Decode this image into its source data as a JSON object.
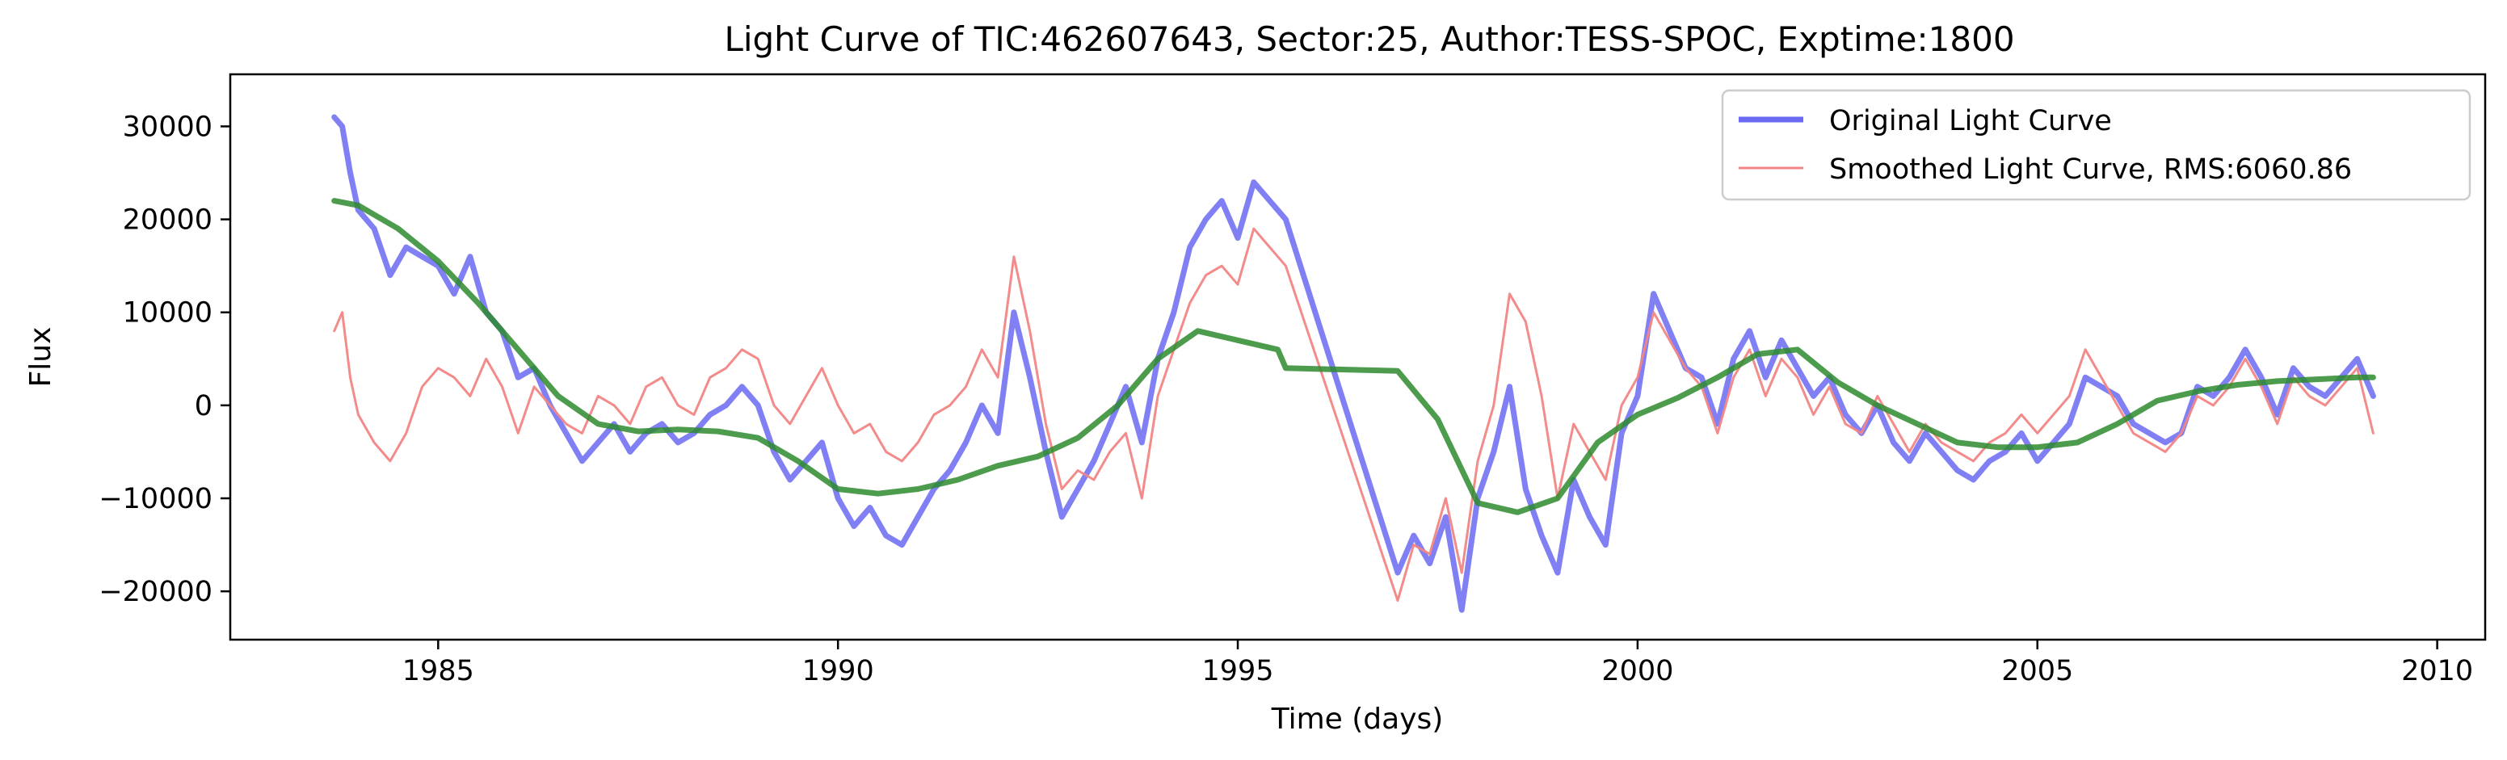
{
  "chart_data": {
    "type": "line",
    "title": "Light Curve of TIC:462607643, Sector:25, Author:TESS-SPOC, Exptime:1800",
    "xlabel": "Time (days)",
    "ylabel": "Flux",
    "xlim": [
      1982.4,
      2010.6
    ],
    "ylim": [
      -25200,
      35600
    ],
    "xticks": [
      1985,
      1990,
      1995,
      2000,
      2005,
      2010
    ],
    "xtick_labels": [
      "1985",
      "1990",
      "1995",
      "2000",
      "2005",
      "2010"
    ],
    "yticks": [
      -20000,
      -10000,
      0,
      10000,
      20000,
      30000
    ],
    "ytick_labels": [
      "−20000",
      "−10000",
      "0",
      "10000",
      "20000",
      "30000"
    ],
    "grid": false,
    "legend": {
      "placement": "upper-right",
      "entries": [
        "Original Light Curve",
        "Smoothed Light Curve, RMS:6060.86"
      ]
    },
    "series": [
      {
        "name": "Original Light Curve",
        "color": "#6a6af2",
        "style": "thick",
        "x": [
          1983.7,
          1983.8,
          1983.9,
          1984.0,
          1984.2,
          1984.4,
          1984.6,
          1984.8,
          1985.0,
          1985.2,
          1985.4,
          1985.6,
          1985.8,
          1986.0,
          1986.2,
          1986.4,
          1986.6,
          1986.8,
          1987.0,
          1987.2,
          1987.4,
          1987.6,
          1987.8,
          1988.0,
          1988.2,
          1988.4,
          1988.6,
          1988.8,
          1989.0,
          1989.2,
          1989.4,
          1989.6,
          1989.8,
          1990.0,
          1990.2,
          1990.4,
          1990.6,
          1990.8,
          1991.0,
          1991.2,
          1991.4,
          1991.6,
          1991.8,
          1992.0,
          1992.2,
          1992.4,
          1992.6,
          1992.8,
          1993.0,
          1993.2,
          1993.4,
          1993.6,
          1993.8,
          1994.0,
          1994.2,
          1994.4,
          1994.6,
          1994.8,
          1995.0,
          1995.2,
          1995.4,
          1995.6,
          1997.0,
          1997.2,
          1997.4,
          1997.6,
          1997.8,
          1998.0,
          1998.2,
          1998.4,
          1998.6,
          1998.8,
          1999.0,
          1999.2,
          1999.4,
          1999.6,
          1999.8,
          2000.0,
          2000.2,
          2000.4,
          2000.6,
          2000.8,
          2001.0,
          2001.2,
          2001.4,
          2001.6,
          2001.8,
          2002.0,
          2002.2,
          2002.4,
          2002.6,
          2002.8,
          2003.0,
          2003.2,
          2003.4,
          2003.6,
          2003.8,
          2004.0,
          2004.2,
          2004.4,
          2004.6,
          2004.8,
          2005.0,
          2005.2,
          2005.4,
          2005.6,
          2005.8,
          2006.0,
          2006.2,
          2006.4,
          2006.6,
          2006.8,
          2007.0,
          2007.2,
          2007.4,
          2007.6,
          2007.8,
          2008.0,
          2008.2,
          2008.4,
          2008.6,
          2008.8,
          2009.0,
          2009.2
        ],
        "y": [
          31000,
          30000,
          25000,
          21000,
          19000,
          14000,
          17000,
          16000,
          15000,
          12000,
          16000,
          10000,
          8000,
          3000,
          4000,
          0,
          -3000,
          -6000,
          -4000,
          -2000,
          -5000,
          -3000,
          -2000,
          -4000,
          -3000,
          -1000,
          0,
          2000,
          0,
          -5000,
          -8000,
          -6000,
          -4000,
          -10000,
          -13000,
          -11000,
          -14000,
          -15000,
          -12000,
          -9000,
          -7000,
          -4000,
          0,
          -3000,
          10000,
          3000,
          -5000,
          -12000,
          -9000,
          -6000,
          -2000,
          2000,
          -4000,
          5000,
          10000,
          17000,
          20000,
          22000,
          18000,
          24000,
          22000,
          20000,
          -18000,
          -14000,
          -17000,
          -12000,
          -22000,
          -10000,
          -5000,
          2000,
          -9000,
          -14000,
          -18000,
          -8000,
          -12000,
          -15000,
          -3000,
          1000,
          12000,
          8000,
          4000,
          3000,
          -2000,
          5000,
          8000,
          3000,
          7000,
          4000,
          1000,
          3000,
          -1000,
          -3000,
          0,
          -4000,
          -6000,
          -3000,
          -5000,
          -7000,
          -8000,
          -6000,
          -5000,
          -3000,
          -6000,
          -4000,
          -2000,
          3000,
          2000,
          1000,
          -2000,
          -3000,
          -4000,
          -3000,
          2000,
          1000,
          3000,
          6000,
          3000,
          -1000,
          4000,
          2000,
          1000,
          3000,
          5000,
          1000
        ],
        "line_width": 7
      },
      {
        "name": "Smoothed Light Curve, RMS:6060.86",
        "color": "#f28585",
        "style": "thin",
        "x": [
          1983.7,
          1983.8,
          1983.9,
          1984.0,
          1984.2,
          1984.4,
          1984.6,
          1984.8,
          1985.0,
          1985.2,
          1985.4,
          1985.6,
          1985.8,
          1986.0,
          1986.2,
          1986.4,
          1986.6,
          1986.8,
          1987.0,
          1987.2,
          1987.4,
          1987.6,
          1987.8,
          1988.0,
          1988.2,
          1988.4,
          1988.6,
          1988.8,
          1989.0,
          1989.2,
          1989.4,
          1989.6,
          1989.8,
          1990.0,
          1990.2,
          1990.4,
          1990.6,
          1990.8,
          1991.0,
          1991.2,
          1991.4,
          1991.6,
          1991.8,
          1992.0,
          1992.2,
          1992.4,
          1992.6,
          1992.8,
          1993.0,
          1993.2,
          1993.4,
          1993.6,
          1993.8,
          1994.0,
          1994.2,
          1994.4,
          1994.6,
          1994.8,
          1995.0,
          1995.2,
          1995.4,
          1995.6,
          1997.0,
          1997.2,
          1997.4,
          1997.6,
          1997.8,
          1998.0,
          1998.2,
          1998.4,
          1998.6,
          1998.8,
          1999.0,
          1999.2,
          1999.4,
          1999.6,
          1999.8,
          2000.0,
          2000.2,
          2000.4,
          2000.6,
          2000.8,
          2001.0,
          2001.2,
          2001.4,
          2001.6,
          2001.8,
          2002.0,
          2002.2,
          2002.4,
          2002.6,
          2002.8,
          2003.0,
          2003.2,
          2003.4,
          2003.6,
          2003.8,
          2004.0,
          2004.2,
          2004.4,
          2004.6,
          2004.8,
          2005.0,
          2005.2,
          2005.4,
          2005.6,
          2005.8,
          2006.0,
          2006.2,
          2006.4,
          2006.6,
          2006.8,
          2007.0,
          2007.2,
          2007.4,
          2007.6,
          2007.8,
          2008.0,
          2008.2,
          2008.4,
          2008.6,
          2008.8,
          2009.0,
          2009.2
        ],
        "y": [
          8000,
          10000,
          3000,
          -1000,
          -4000,
          -6000,
          -3000,
          2000,
          4000,
          3000,
          1000,
          5000,
          2000,
          -3000,
          2000,
          0,
          -2000,
          -3000,
          1000,
          0,
          -2000,
          2000,
          3000,
          0,
          -1000,
          3000,
          4000,
          6000,
          5000,
          0,
          -2000,
          1000,
          4000,
          0,
          -3000,
          -2000,
          -5000,
          -6000,
          -4000,
          -1000,
          0,
          2000,
          6000,
          3000,
          16000,
          8000,
          -2000,
          -9000,
          -7000,
          -8000,
          -5000,
          -3000,
          -10000,
          1000,
          6000,
          11000,
          14000,
          15000,
          13000,
          19000,
          17000,
          15000,
          -21000,
          -15000,
          -16000,
          -10000,
          -18000,
          -6000,
          0,
          12000,
          9000,
          1000,
          -10000,
          -2000,
          -5000,
          -8000,
          0,
          3000,
          10000,
          7000,
          4000,
          2000,
          -3000,
          3000,
          6000,
          1000,
          5000,
          3000,
          -1000,
          2000,
          -2000,
          -3000,
          1000,
          -2000,
          -5000,
          -2000,
          -4000,
          -5000,
          -6000,
          -4000,
          -3000,
          -1000,
          -3000,
          -1000,
          1000,
          6000,
          3000,
          0,
          -3000,
          -4000,
          -5000,
          -3000,
          1000,
          0,
          2000,
          5000,
          2000,
          -2000,
          3000,
          1000,
          0,
          2000,
          4000,
          -3000
        ],
        "line_width": 3
      },
      {
        "name": "",
        "color": "#2e8b2e",
        "style": "trend",
        "x": [
          1983.7,
          1984.0,
          1984.5,
          1985.0,
          1985.5,
          1986.0,
          1986.5,
          1987.0,
          1987.5,
          1988.0,
          1988.5,
          1989.0,
          1989.5,
          1990.0,
          1990.5,
          1991.0,
          1991.5,
          1992.0,
          1992.5,
          1993.0,
          1993.5,
          1994.0,
          1994.5,
          1995.0,
          1995.5,
          1995.6,
          1997.0,
          1997.5,
          1998.0,
          1998.5,
          1999.0,
          1999.5,
          2000.0,
          2000.5,
          2001.0,
          2001.5,
          2002.0,
          2002.5,
          2003.0,
          2003.5,
          2004.0,
          2004.5,
          2005.0,
          2005.5,
          2006.0,
          2006.5,
          2007.0,
          2007.5,
          2008.0,
          2008.5,
          2009.0,
          2009.2
        ],
        "y": [
          22000,
          21500,
          19000,
          15500,
          11000,
          6000,
          1000,
          -2000,
          -2800,
          -2600,
          -2800,
          -3500,
          -6000,
          -9000,
          -9500,
          -9000,
          -8000,
          -6500,
          -5500,
          -3500,
          0,
          5000,
          8000,
          7000,
          6000,
          4000,
          3700,
          -1500,
          -10500,
          -11500,
          -10000,
          -4000,
          -1000,
          800,
          3000,
          5500,
          6000,
          2500,
          0,
          -2000,
          -4000,
          -4500,
          -4500,
          -4000,
          -2000,
          500,
          1500,
          2200,
          2600,
          2800,
          3000,
          3000
        ],
        "line_width": 7
      }
    ]
  }
}
